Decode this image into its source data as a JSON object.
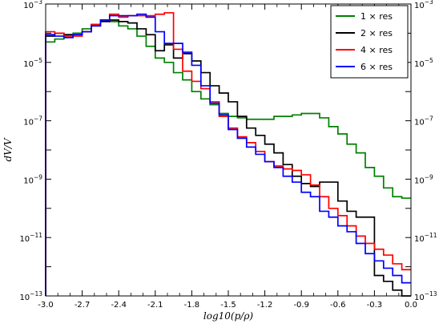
{
  "chart_data": {
    "type": "line",
    "step": true,
    "xlabel": "log10(p/ρ)",
    "ylabel": "dV/V",
    "y_log": true,
    "xlim": [
      -3.0,
      0.0
    ],
    "ylim_exp": [
      -13,
      -3
    ],
    "x_ticks": [
      "-3.0",
      "-2.7",
      "-2.4",
      "-2.1",
      "-1.8",
      "-1.5",
      "-1.2",
      "-0.9",
      "-0.6",
      "-0.3",
      "0.0"
    ],
    "y_ticks": [
      {
        "base": "10",
        "exp": "−3"
      },
      {
        "base": "10",
        "exp": "−5"
      },
      {
        "base": "10",
        "exp": "−7"
      },
      {
        "base": "10",
        "exp": "−9"
      },
      {
        "base": "10",
        "exp": "−11"
      },
      {
        "base": "10",
        "exp": "−13"
      }
    ],
    "legend_position": "top-right",
    "bin_edges": [
      -3.0,
      -2.925,
      -2.85,
      -2.775,
      -2.7,
      -2.625,
      -2.55,
      -2.475,
      -2.4,
      -2.325,
      -2.25,
      -2.175,
      -2.1,
      -2.025,
      -1.95,
      -1.875,
      -1.8,
      -1.725,
      -1.65,
      -1.575,
      -1.5,
      -1.425,
      -1.35,
      -1.275,
      -1.2,
      -1.125,
      -1.05,
      -0.975,
      -0.9,
      -0.825,
      -0.75,
      -0.675,
      -0.6,
      -0.525,
      -0.45,
      -0.375,
      -0.3,
      -0.225,
      -0.15,
      -0.075,
      0.0
    ],
    "series": [
      {
        "name": "1 × res",
        "color": "#008000",
        "log10_values": [
          -4.3,
          -4.2,
          -4.05,
          -4.0,
          -3.85,
          -3.7,
          -3.55,
          -3.6,
          -3.75,
          -3.85,
          -4.1,
          -4.45,
          -4.85,
          -5.0,
          -5.35,
          -5.6,
          -6.0,
          -6.25,
          -6.45,
          -6.75,
          -6.85,
          -6.9,
          -6.95,
          -6.95,
          -6.95,
          -6.85,
          -6.85,
          -6.8,
          -6.75,
          -6.75,
          -6.9,
          -7.2,
          -7.45,
          -7.8,
          -8.1,
          -8.6,
          -8.9,
          -9.3,
          -9.6,
          -9.65
        ]
      },
      {
        "name": "2 × res",
        "color": "#000000",
        "log10_values": [
          -4.1,
          -4.0,
          -4.05,
          -4.05,
          -3.95,
          -3.75,
          -3.6,
          -3.55,
          -3.6,
          -3.65,
          -3.85,
          -4.05,
          -4.6,
          -4.4,
          -4.85,
          -4.7,
          -4.95,
          -5.35,
          -5.8,
          -6.05,
          -6.35,
          -6.85,
          -7.25,
          -7.5,
          -7.8,
          -8.1,
          -8.5,
          -8.9,
          -9.15,
          -9.25,
          -9.1,
          -9.1,
          -9.75,
          -10.1,
          -10.3,
          -10.3,
          -12.3,
          -12.5,
          -12.8,
          -13.0
        ]
      },
      {
        "name": "4 × res",
        "color": "#ff0000",
        "log10_values": [
          -3.95,
          -4.0,
          -4.1,
          -4.1,
          -3.95,
          -3.7,
          -3.55,
          -3.35,
          -3.45,
          -3.4,
          -3.4,
          -3.4,
          -3.35,
          -3.3,
          -4.55,
          -5.3,
          -5.65,
          -5.9,
          -6.35,
          -6.85,
          -7.25,
          -7.55,
          -7.75,
          -8.05,
          -8.4,
          -8.55,
          -8.65,
          -8.7,
          -8.85,
          -9.2,
          -9.6,
          -10.0,
          -10.25,
          -10.6,
          -10.95,
          -11.2,
          -11.4,
          -11.6,
          -11.9,
          -12.1
        ]
      },
      {
        "name": "6 × res",
        "color": "#0000ff",
        "log10_values": [
          -4.05,
          -4.1,
          -4.15,
          -4.05,
          -3.95,
          -3.75,
          -3.55,
          -3.4,
          -3.4,
          -3.4,
          -3.35,
          -3.45,
          -3.95,
          -4.35,
          -4.35,
          -4.65,
          -5.1,
          -5.8,
          -6.4,
          -6.8,
          -7.3,
          -7.6,
          -7.9,
          -8.15,
          -8.4,
          -8.6,
          -8.9,
          -9.1,
          -9.45,
          -9.6,
          -10.1,
          -10.3,
          -10.6,
          -10.8,
          -11.2,
          -11.55,
          -11.8,
          -12.05,
          -12.3,
          -12.55
        ]
      }
    ]
  }
}
